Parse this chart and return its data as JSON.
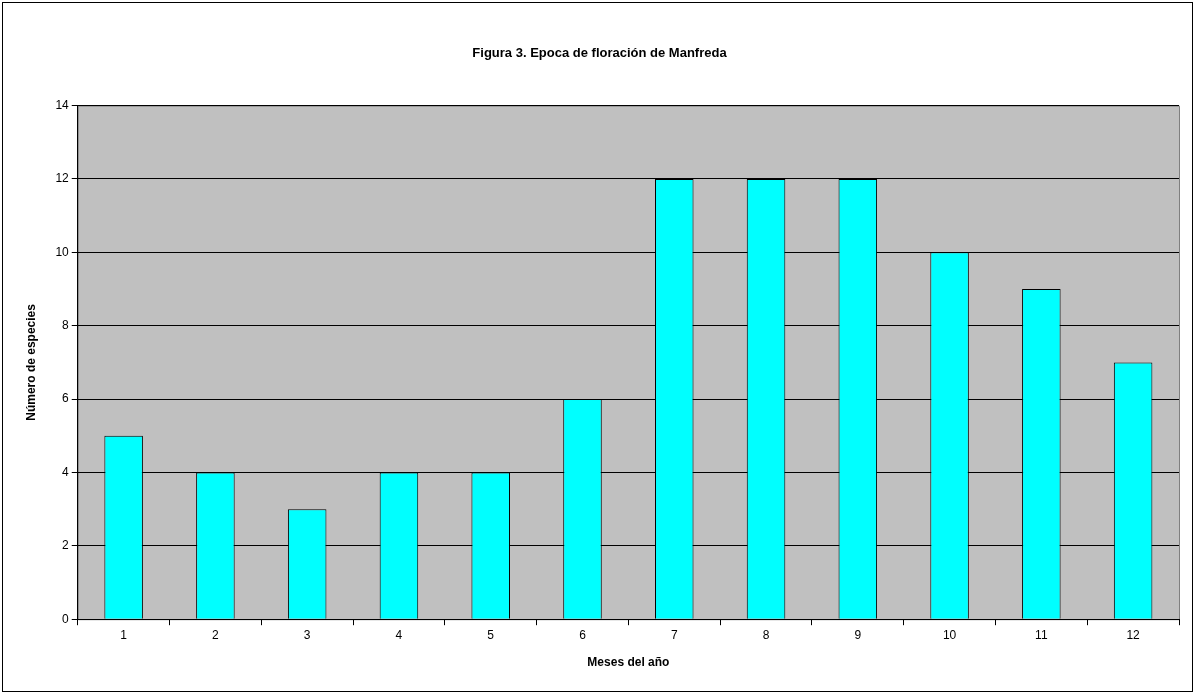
{
  "chart_data": {
    "type": "bar",
    "title": "Figura 3. Epoca de floración de Manfreda",
    "xlabel": "Meses del año",
    "ylabel": "Número de especies",
    "categories": [
      "1",
      "2",
      "3",
      "4",
      "5",
      "6",
      "7",
      "8",
      "9",
      "10",
      "11",
      "12"
    ],
    "values": [
      5,
      4,
      3,
      4,
      4,
      6,
      12,
      12,
      12,
      10,
      9,
      7
    ],
    "color": "#00ffff",
    "ylim": [
      0,
      14
    ],
    "yticks": [
      0,
      2,
      4,
      6,
      8,
      10,
      12,
      14
    ],
    "grid": "y",
    "legend": false
  }
}
